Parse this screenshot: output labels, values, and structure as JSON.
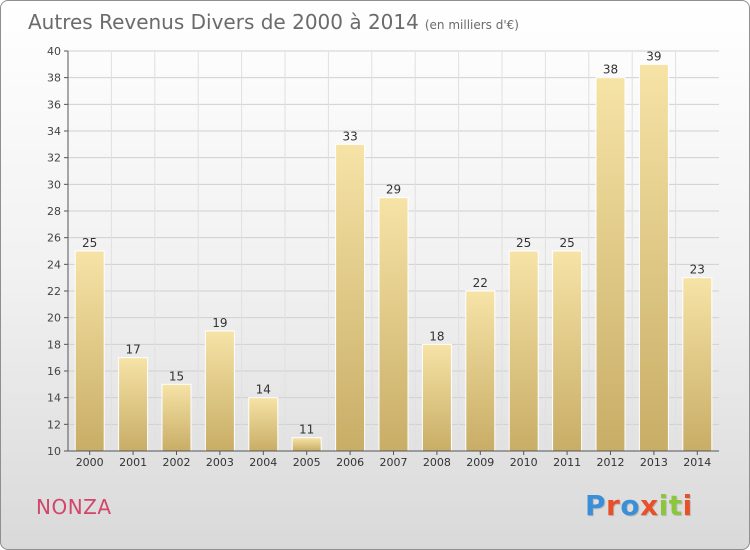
{
  "header": {
    "title": "Autres Revenus Divers de 2000 à 2014",
    "unit": "(en milliers d'€)"
  },
  "footer": {
    "place": "NONZA",
    "logo_text": "Proxiti",
    "logo_colors": [
      "#3a8fd6",
      "#e8502a",
      "#3a8fd6",
      "#e8502a",
      "#8cc63f",
      "#8cc63f",
      "#e8502a"
    ]
  },
  "chart_data": {
    "type": "bar",
    "title": "Autres Revenus Divers de 2000 à 2014",
    "subtitle": "(en milliers d'€)",
    "xlabel": "",
    "ylabel": "",
    "categories": [
      "2000",
      "2001",
      "2002",
      "2003",
      "2004",
      "2005",
      "2006",
      "2007",
      "2008",
      "2009",
      "2010",
      "2011",
      "2012",
      "2013",
      "2014"
    ],
    "values": [
      25,
      17,
      15,
      19,
      14,
      11,
      33,
      29,
      18,
      22,
      25,
      25,
      38,
      39,
      23
    ],
    "ylim": [
      10,
      40
    ],
    "yticks": [
      10,
      12,
      14,
      16,
      18,
      20,
      22,
      24,
      26,
      28,
      30,
      32,
      34,
      36,
      38,
      40
    ],
    "grid": true,
    "data_labels": true,
    "bar_color": "#e6cc84"
  }
}
